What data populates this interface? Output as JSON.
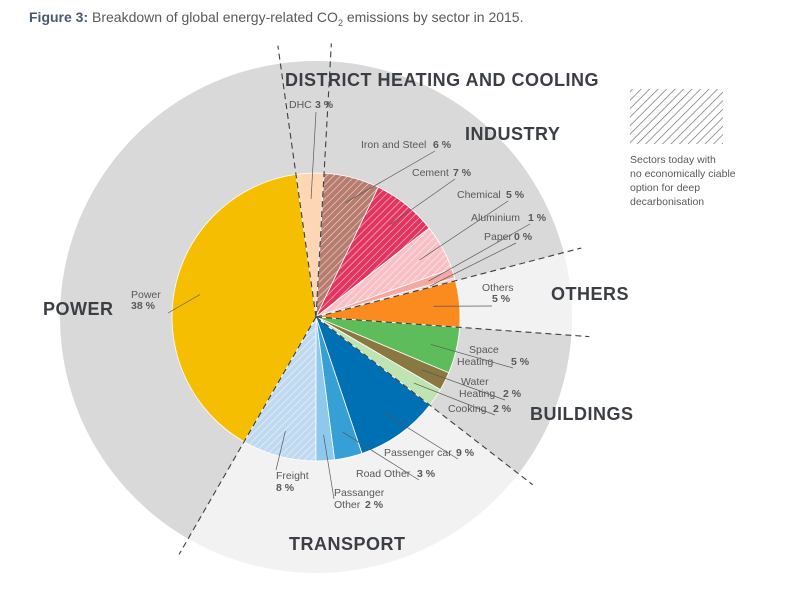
{
  "title": {
    "figure_label": "Figure 3:",
    "text": "Breakdown of global energy-related CO",
    "subscript": "2",
    "text_tail": " emissions by sector in 2015."
  },
  "legend": {
    "lines": [
      "Sectors today with",
      "no economically ciable",
      "option for deep",
      "decarbonisation"
    ]
  },
  "colors": {
    "outer_gray": "#d9d9d9",
    "outer_light": "#f2f2f2",
    "power": "#f5be00",
    "dhc": "#fdd6b5",
    "iron_steel": "#b77c6d",
    "cement": "#e1345f",
    "chemical": "#f7c0c5",
    "aluminium": "#f4a9a4",
    "paper": "#f7d3cc",
    "others": "#fb8a1f",
    "space_heating": "#5dbd5a",
    "water_heating": "#8b7740",
    "cooking": "#bfe3b1",
    "passenger_car": "#0070b5",
    "road_other": "#36a0d6",
    "passenger_other": "#8ec8ea",
    "freight": "#bfd9f0"
  },
  "chart_data": {
    "type": "pie",
    "unit": "%",
    "slices": [
      {
        "name": "DHC",
        "value": 3,
        "label": "DHC",
        "value_label": "3 %",
        "sector": "DISTRICT HEATING AND COOLING",
        "hatched": false,
        "color": "#fdd6b5"
      },
      {
        "name": "Iron and Steel",
        "value": 6,
        "label": "Iron and Steel",
        "value_label": "6 %",
        "sector": "INDUSTRY",
        "hatched": true,
        "color": "#b77c6d"
      },
      {
        "name": "Cement",
        "value": 7,
        "label": "Cement",
        "value_label": "7 %",
        "sector": "INDUSTRY",
        "hatched": true,
        "color": "#e1345f"
      },
      {
        "name": "Chemical",
        "value": 5,
        "label": "Chemical",
        "value_label": "5 %",
        "sector": "INDUSTRY",
        "hatched": true,
        "color": "#f7c0c5"
      },
      {
        "name": "Aluminium",
        "value": 1,
        "label": "Aluminium",
        "value_label": "1 %",
        "sector": "INDUSTRY",
        "hatched": false,
        "color": "#f4a9a4"
      },
      {
        "name": "Paper",
        "value": 0,
        "label": "Paper",
        "value_label": "0 %",
        "sector": "INDUSTRY",
        "hatched": false,
        "color": "#f7d3cc"
      },
      {
        "name": "Others",
        "value": 5,
        "label": "Others",
        "value_label": "5 %",
        "sector": "OTHERS",
        "hatched": false,
        "color": "#fb8a1f"
      },
      {
        "name": "Space Heating",
        "value": 5,
        "label": "Space Heating",
        "value_label": "5 %",
        "sector": "BUILDINGS",
        "hatched": false,
        "color": "#5dbd5a"
      },
      {
        "name": "Water Heating",
        "value": 2,
        "label": "Water Heating",
        "value_label": "2 %",
        "sector": "BUILDINGS",
        "hatched": false,
        "color": "#8b7740"
      },
      {
        "name": "Cooking",
        "value": 2,
        "label": "Cooking",
        "value_label": "2 %",
        "sector": "BUILDINGS",
        "hatched": false,
        "color": "#bfe3b1"
      },
      {
        "name": "Passenger car",
        "value": 9,
        "label": "Passenger car",
        "value_label": "9 %",
        "sector": "TRANSPORT",
        "hatched": false,
        "color": "#0070b5"
      },
      {
        "name": "Road Other",
        "value": 3,
        "label": "Road Other",
        "value_label": "3 %",
        "sector": "TRANSPORT",
        "hatched": false,
        "color": "#36a0d6"
      },
      {
        "name": "Passanger Other",
        "value": 2,
        "label": "Passanger Other",
        "value_label": "2 %",
        "sector": "TRANSPORT",
        "hatched": false,
        "color": "#8ec8ea"
      },
      {
        "name": "Freight",
        "value": 8,
        "label": "Freight",
        "value_label": "8 %",
        "sector": "TRANSPORT",
        "hatched": true,
        "color": "#bfd9f0"
      },
      {
        "name": "Power",
        "value": 38,
        "label": "Power",
        "value_label": "38 %",
        "sector": "POWER",
        "hatched": false,
        "color": "#f5be00"
      }
    ],
    "sectors": [
      {
        "name": "DISTRICT HEATING AND COOLING",
        "shaded": true
      },
      {
        "name": "INDUSTRY",
        "shaded": true
      },
      {
        "name": "OTHERS",
        "shaded": false
      },
      {
        "name": "BUILDINGS",
        "shaded": true
      },
      {
        "name": "TRANSPORT",
        "shaded": false
      },
      {
        "name": "POWER",
        "shaded": true
      }
    ]
  }
}
